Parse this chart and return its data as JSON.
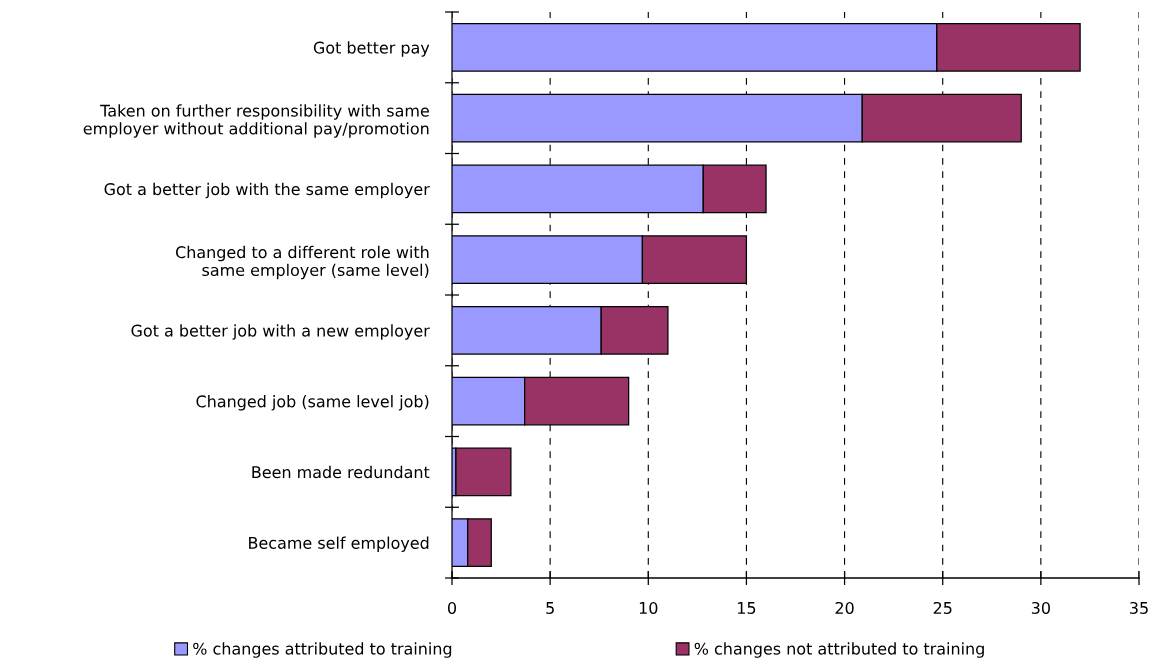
{
  "chart_data": {
    "type": "bar",
    "orientation": "horizontal",
    "stacked": true,
    "categories": [
      "Got better pay",
      "Taken on further responsibility with same\nemployer without additional pay/promotion",
      "Got a better job with the same employer",
      "Changed to a different role with\nsame employer (same level)",
      "Got a better job with a new employer",
      "Changed job (same level job)",
      "Been made redundant",
      "Became self employed"
    ],
    "series": [
      {
        "name": "% changes attributed to training",
        "color": "#9999ff",
        "values": [
          24.7,
          20.9,
          12.8,
          9.7,
          7.6,
          3.7,
          0.2,
          0.8
        ]
      },
      {
        "name": "% changes not attributed to training",
        "color": "#993366",
        "values": [
          7.3,
          8.1,
          3.2,
          5.3,
          3.4,
          5.3,
          2.8,
          1.2
        ]
      }
    ],
    "xlim": [
      0,
      35
    ],
    "xticks": [
      0,
      5,
      10,
      15,
      20,
      25,
      30,
      35
    ],
    "grid": "x",
    "legend": "bottom"
  }
}
